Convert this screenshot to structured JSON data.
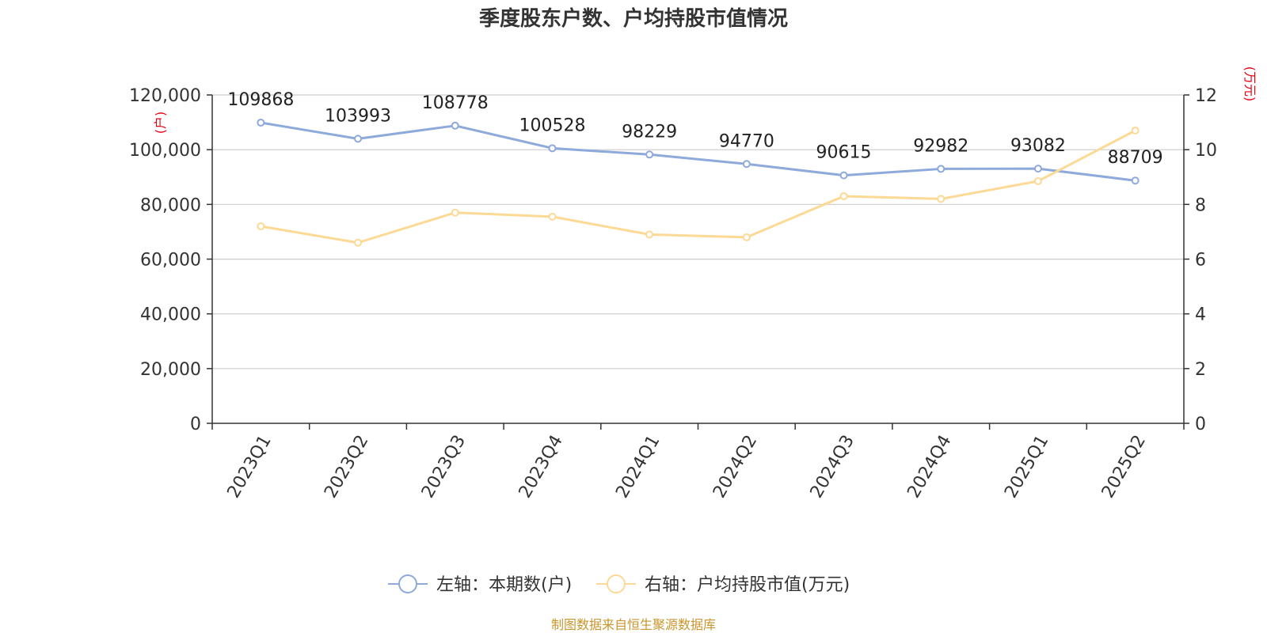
{
  "chart_data": {
    "type": "line",
    "title": "季度股东户数、户均持股市值情况",
    "categories": [
      "2023Q1",
      "2023Q2",
      "2023Q3",
      "2023Q4",
      "2024Q1",
      "2024Q2",
      "2024Q3",
      "2024Q4",
      "2025Q1",
      "2025Q2"
    ],
    "series": [
      {
        "name": "左轴：本期数(户)",
        "axis": "left",
        "color": "#8eaadb",
        "values": [
          109868,
          103993,
          108778,
          100528,
          98229,
          94770,
          90615,
          92982,
          93082,
          88709
        ],
        "labels": [
          "109868",
          "103993",
          "108778",
          "100528",
          "98229",
          "94770",
          "90615",
          "92982",
          "93082",
          "88709"
        ]
      },
      {
        "name": "右轴：户均持股市值(万元)",
        "axis": "right",
        "color": "#fcd995",
        "values": [
          7.2,
          6.6,
          7.7,
          7.55,
          6.9,
          6.8,
          8.3,
          8.2,
          8.85,
          10.7
        ]
      }
    ],
    "y_left": {
      "label": "(户)",
      "lim": [
        0,
        120000
      ],
      "ticks": [
        "0",
        "20,000",
        "40,000",
        "60,000",
        "80,000",
        "100,000",
        "120,000"
      ]
    },
    "y_right": {
      "label": "(万元)",
      "lim": [
        0,
        12
      ],
      "ticks": [
        "0",
        "2",
        "4",
        "6",
        "8",
        "10",
        "12"
      ]
    },
    "grid": true,
    "legend_position": "bottom-center",
    "source": "制图数据来自恒生聚源数据库",
    "axis_color": "#333333",
    "grid_color": "#cccccc",
    "unit_color": "#e60012",
    "source_color": "#c8962d"
  }
}
